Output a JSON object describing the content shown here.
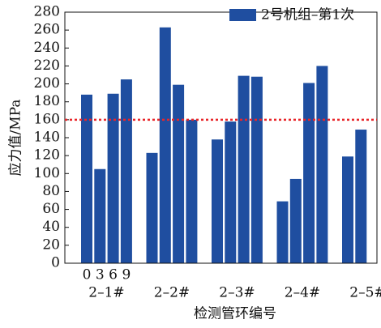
{
  "chart_data": {
    "type": "bar",
    "xlabel": "检测管环编号",
    "ylabel": "应力值/MPa",
    "categories": [
      "2–1#",
      "2–2#",
      "2–3#",
      "2–4#",
      "2–5#"
    ],
    "positions": [
      "0",
      "3",
      "6",
      "9"
    ],
    "series": [
      {
        "name": "2号机组–第1次",
        "color": "#1f4ea0",
        "values": [
          [
            188,
            105,
            189,
            205
          ],
          [
            123,
            263,
            199,
            160
          ],
          [
            138,
            158,
            209,
            208
          ],
          [
            69,
            94,
            201,
            220
          ],
          [
            119,
            149,
            null,
            null
          ]
        ]
      }
    ],
    "ref_line": {
      "value": 160,
      "color": "#e8262a"
    },
    "ylim": [
      0,
      280
    ],
    "yticks": [
      0,
      20,
      40,
      60,
      80,
      100,
      120,
      140,
      160,
      180,
      200,
      220,
      240,
      260,
      280
    ]
  }
}
